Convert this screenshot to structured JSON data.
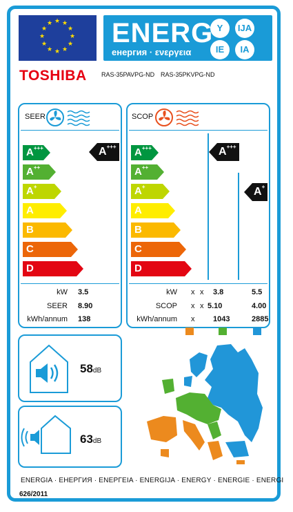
{
  "header": {
    "title": "ENERG",
    "subtitle": "енергия · ενεργεια",
    "lang_badges": [
      "Y",
      "IJA",
      "IE",
      "IA"
    ]
  },
  "brand": "TOSHIBA",
  "models": {
    "indoor": "RAS-35PAVPG-ND",
    "outdoor": "RAS-35PKVPG-ND"
  },
  "colors": {
    "frame": "#1a9bd7",
    "classes": [
      "#009640",
      "#53b032",
      "#bed600",
      "#ffed00",
      "#fbb900",
      "#ec6608",
      "#e30613"
    ],
    "climate_average": "#53b032",
    "climate_warmer": "#ec8a1e",
    "climate_colder": "#2196d8"
  },
  "scale_letters": [
    "A",
    "A",
    "A",
    "A",
    "B",
    "C",
    "D"
  ],
  "scale_plus": [
    "+++",
    "++",
    "+",
    "",
    "",
    "",
    ""
  ],
  "cooling": {
    "label": "SEER",
    "class_letter": "A",
    "class_plus": "+++",
    "rows": [
      {
        "name": "kW",
        "value": "3.5"
      },
      {
        "name": "SEER",
        "value": "8.90"
      },
      {
        "name": "kWh/annum",
        "value": "138"
      }
    ]
  },
  "heating": {
    "label": "SCOP",
    "average_class_letter": "A",
    "average_class_plus": "+++",
    "colder_class_letter": "A",
    "colder_class_plus": "+",
    "rows": [
      {
        "name": "kW",
        "warmer": "x",
        "extra": "x",
        "average": "3.8",
        "colder": "5.5"
      },
      {
        "name": "SCOP",
        "warmer": "x",
        "extra": "x",
        "average": "5.10",
        "colder": "4.00"
      },
      {
        "name": "kWh/annum",
        "warmer": "x",
        "extra": "",
        "average": "1043",
        "colder": "2885"
      }
    ]
  },
  "noise": {
    "indoor": {
      "value": "58",
      "unit": "dB"
    },
    "outdoor": {
      "value": "63",
      "unit": "dB"
    }
  },
  "footer": {
    "languages": "ENERGIA · ЕНЕРГИЯ · ΕΝΕΡΓΕΙΑ · ENERGIJA · ENERGY · ENERGIE · ENERGI",
    "regulation": "626/2011"
  }
}
